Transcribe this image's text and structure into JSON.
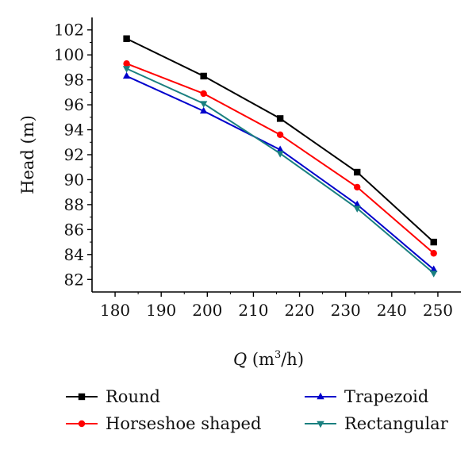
{
  "chart_data": {
    "type": "line",
    "title": "",
    "xlabel": "Q (m³/h)",
    "xlabel_parts": {
      "variable": "Q",
      "open": " (m",
      "superscript": "3",
      "close": "/h)"
    },
    "ylabel": "Head (m)",
    "xlim": [
      175,
      255
    ],
    "ylim": [
      81,
      103
    ],
    "x_ticks": [
      180,
      190,
      200,
      210,
      220,
      230,
      240,
      250
    ],
    "y_ticks": [
      82,
      84,
      86,
      88,
      90,
      92,
      94,
      96,
      98,
      100,
      102
    ],
    "grid": false,
    "legend_position": "bottom",
    "x": [
      182.5,
      199.2,
      215.8,
      232.5,
      249.1
    ],
    "series": [
      {
        "name": "Round",
        "color": "#000000",
        "marker": "square",
        "values": [
          101.3,
          98.3,
          94.9,
          90.6,
          85.0
        ]
      },
      {
        "name": "Horseshoe shaped",
        "color": "#ff0000",
        "marker": "circle",
        "values": [
          99.3,
          96.9,
          93.6,
          89.4,
          84.1
        ]
      },
      {
        "name": "Trapezoid",
        "color": "#0000cc",
        "marker": "triangle-up",
        "values": [
          98.3,
          95.5,
          92.4,
          88.0,
          82.8
        ]
      },
      {
        "name": "Rectangular",
        "color": "#1a8080",
        "marker": "triangle-down",
        "values": [
          98.9,
          96.1,
          92.1,
          87.7,
          82.5
        ]
      }
    ]
  }
}
